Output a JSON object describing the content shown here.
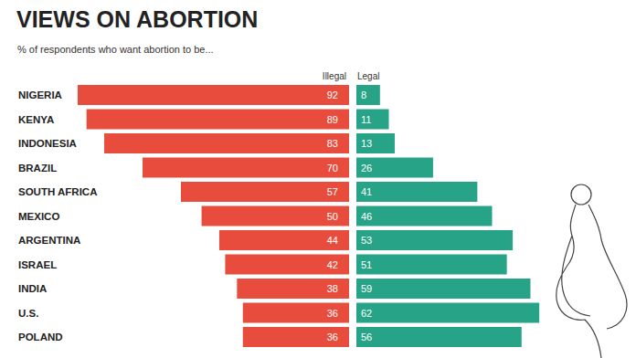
{
  "chart_data": {
    "type": "bar",
    "orientation": "horizontal",
    "title": "VIEWS ON ABORTION",
    "subtitle": "% of respondents who want abortion to be...",
    "categories": [
      "NIGERIA",
      "KENYA",
      "INDONESIA",
      "BRAZIL",
      "SOUTH AFRICA",
      "MEXICO",
      "ARGENTINA",
      "ISRAEL",
      "INDIA",
      "U.S.",
      "POLAND"
    ],
    "series": [
      {
        "name": "Illegal",
        "color": "#e84c3d",
        "values": [
          92,
          89,
          83,
          70,
          57,
          50,
          44,
          42,
          38,
          36,
          36
        ]
      },
      {
        "name": "Legal",
        "color": "#27a488",
        "values": [
          8,
          11,
          13,
          26,
          41,
          46,
          53,
          51,
          59,
          62,
          56
        ]
      }
    ],
    "xlim": [
      0,
      92
    ],
    "data_labels": true,
    "tick_labels": "y",
    "grid": false
  }
}
